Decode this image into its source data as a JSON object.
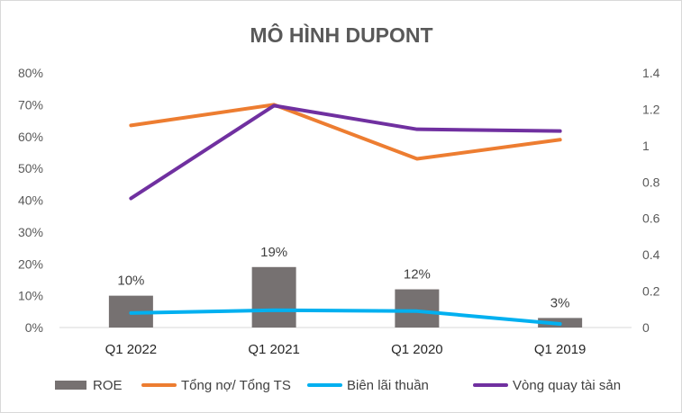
{
  "chart_data": {
    "type": "bar",
    "title": "MÔ HÌNH DUPONT",
    "categories": [
      "Q1 2022",
      "Q1 2021",
      "Q1 2020",
      "Q1 2019"
    ],
    "y_left": {
      "min": 0,
      "max": 0.8,
      "step": 0.1,
      "ticks": [
        "0%",
        "10%",
        "20%",
        "30%",
        "40%",
        "50%",
        "60%",
        "70%",
        "80%"
      ]
    },
    "y_right": {
      "min": 0,
      "max": 1.4,
      "step": 0.2,
      "ticks": [
        "0",
        "0.2",
        "0.4",
        "0.6",
        "0.8",
        "1",
        "1.2",
        "1.4"
      ]
    },
    "grid": false,
    "legend_position": "bottom",
    "series": [
      {
        "name": "ROE",
        "type": "bar",
        "axis": "left",
        "color": "#767171",
        "values": [
          0.1,
          0.19,
          0.12,
          0.03
        ],
        "labels": [
          "10%",
          "19%",
          "12%",
          "3%"
        ]
      },
      {
        "name": "Tổng nợ/ Tổng TS",
        "type": "line",
        "axis": "left",
        "color": "#ED7D31",
        "values": [
          0.635,
          0.7,
          0.53,
          0.59
        ]
      },
      {
        "name": "Biên lãi thuần",
        "type": "line",
        "axis": "right",
        "color": "#00B0F0",
        "values": [
          0.08,
          0.095,
          0.09,
          0.02
        ]
      },
      {
        "name": "Vòng quay tài sản",
        "type": "line",
        "axis": "right",
        "color": "#7030A0",
        "values": [
          0.71,
          1.22,
          1.09,
          1.08
        ]
      }
    ]
  }
}
